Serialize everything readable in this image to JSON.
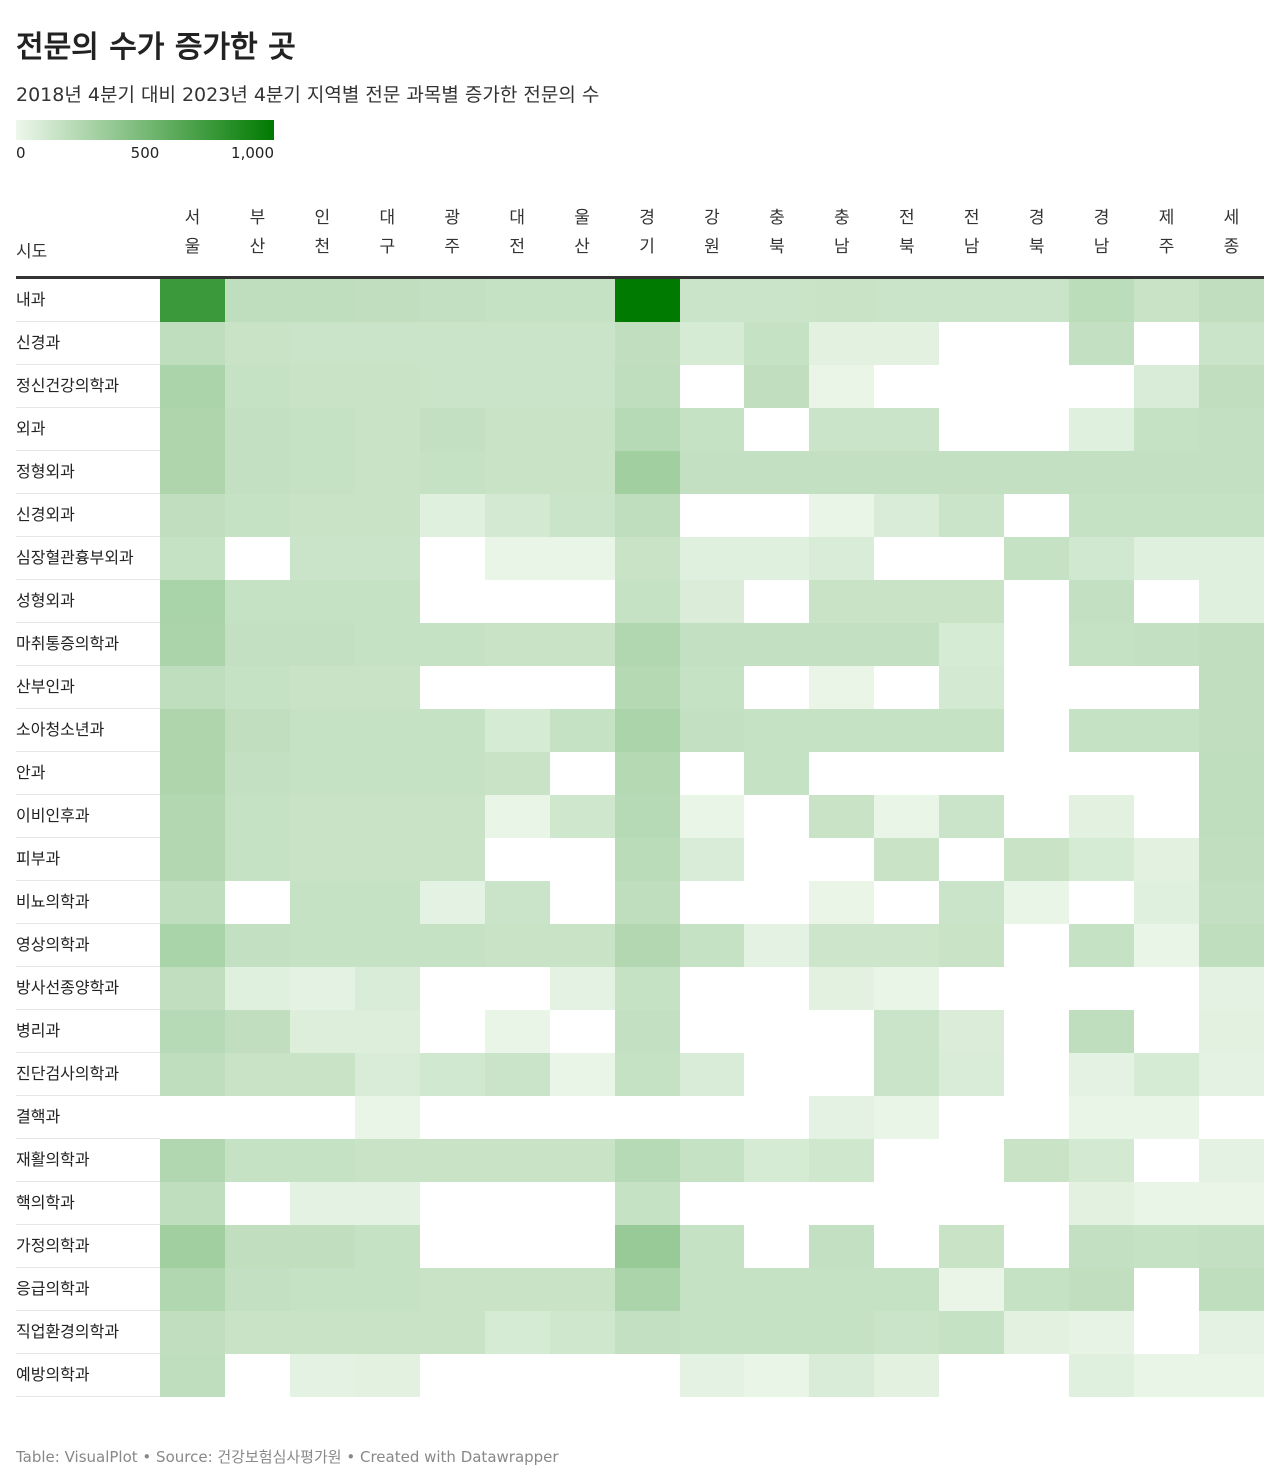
{
  "chart_data": {
    "type": "heatmap",
    "title": "전문의 수가 증가한 곳",
    "subtitle": "2018년 4분기 대비 2023년 4분기 지역별 전문 과목별 증가한 전문의 수",
    "row_header": "시도",
    "columns": [
      "서울",
      "부산",
      "인천",
      "대구",
      "광주",
      "대전",
      "울산",
      "경기",
      "강원",
      "충북",
      "충남",
      "전북",
      "전남",
      "경북",
      "경남",
      "제주",
      "세종"
    ],
    "rows": [
      "내과",
      "신경과",
      "정신건강의학과",
      "외과",
      "정형외과",
      "신경외과",
      "심장혈관흉부외과",
      "성형외과",
      "마취통증의학과",
      "산부인과",
      "소아청소년과",
      "안과",
      "이비인후과",
      "피부과",
      "비뇨의학과",
      "영상의학과",
      "방사선종양학과",
      "병리과",
      "진단검사의학과",
      "결핵과",
      "재활의학과",
      "핵의학과",
      "가정의학과",
      "응급의학과",
      "직업환경의학과",
      "예방의학과"
    ],
    "values": [
      [
        750,
        200,
        200,
        190,
        180,
        170,
        170,
        1050,
        150,
        150,
        160,
        150,
        150,
        150,
        210,
        160,
        190
      ],
      [
        200,
        160,
        150,
        150,
        150,
        150,
        150,
        190,
        100,
        170,
        50,
        50,
        null,
        null,
        180,
        null,
        150
      ],
      [
        280,
        170,
        160,
        160,
        150,
        150,
        150,
        200,
        null,
        190,
        15,
        null,
        null,
        null,
        null,
        90,
        190
      ],
      [
        270,
        180,
        170,
        160,
        180,
        160,
        160,
        230,
        170,
        null,
        150,
        150,
        null,
        null,
        60,
        170,
        180
      ],
      [
        270,
        180,
        170,
        160,
        170,
        160,
        160,
        320,
        180,
        180,
        180,
        180,
        180,
        180,
        180,
        180,
        180
      ],
      [
        190,
        170,
        160,
        160,
        60,
        110,
        150,
        200,
        null,
        null,
        20,
        90,
        150,
        null,
        170,
        170,
        170
      ],
      [
        170,
        null,
        150,
        150,
        null,
        20,
        20,
        160,
        60,
        60,
        90,
        null,
        null,
        170,
        120,
        60,
        60
      ],
      [
        290,
        170,
        170,
        170,
        null,
        null,
        null,
        170,
        80,
        null,
        160,
        160,
        160,
        null,
        180,
        null,
        60
      ],
      [
        280,
        180,
        180,
        170,
        170,
        160,
        160,
        260,
        180,
        180,
        180,
        180,
        100,
        null,
        170,
        180,
        190
      ],
      [
        200,
        170,
        160,
        160,
        null,
        null,
        null,
        240,
        170,
        null,
        15,
        null,
        110,
        null,
        null,
        null,
        190
      ],
      [
        270,
        190,
        170,
        170,
        170,
        100,
        170,
        280,
        180,
        170,
        170,
        170,
        170,
        null,
        170,
        170,
        190
      ],
      [
        270,
        180,
        170,
        170,
        170,
        160,
        null,
        240,
        null,
        170,
        null,
        null,
        null,
        null,
        null,
        null,
        200
      ],
      [
        250,
        170,
        160,
        160,
        160,
        20,
        130,
        230,
        20,
        null,
        160,
        20,
        150,
        null,
        50,
        null,
        200
      ],
      [
        250,
        170,
        160,
        160,
        160,
        null,
        null,
        220,
        90,
        null,
        null,
        160,
        null,
        160,
        100,
        50,
        190
      ],
      [
        200,
        null,
        170,
        170,
        40,
        150,
        null,
        200,
        null,
        null,
        15,
        null,
        150,
        20,
        null,
        60,
        180
      ],
      [
        290,
        180,
        170,
        170,
        170,
        160,
        160,
        250,
        170,
        40,
        140,
        140,
        160,
        null,
        170,
        20,
        200
      ],
      [
        190,
        60,
        40,
        90,
        null,
        null,
        40,
        170,
        null,
        null,
        50,
        20,
        null,
        null,
        null,
        null,
        40
      ],
      [
        230,
        190,
        70,
        70,
        null,
        20,
        null,
        180,
        null,
        null,
        null,
        150,
        80,
        null,
        200,
        null,
        50
      ],
      [
        200,
        160,
        160,
        90,
        120,
        150,
        20,
        170,
        90,
        null,
        null,
        150,
        90,
        null,
        40,
        100,
        40
      ],
      [
        null,
        null,
        null,
        20,
        null,
        null,
        null,
        null,
        null,
        null,
        40,
        20,
        null,
        null,
        20,
        20,
        null
      ],
      [
        260,
        170,
        170,
        160,
        160,
        160,
        160,
        230,
        170,
        100,
        130,
        null,
        null,
        160,
        110,
        null,
        40
      ],
      [
        200,
        null,
        40,
        40,
        null,
        null,
        null,
        170,
        null,
        null,
        null,
        null,
        null,
        null,
        50,
        20,
        15
      ],
      [
        320,
        190,
        190,
        170,
        null,
        null,
        null,
        360,
        170,
        null,
        180,
        null,
        160,
        null,
        180,
        170,
        180
      ],
      [
        260,
        180,
        170,
        170,
        160,
        160,
        160,
        280,
        170,
        170,
        170,
        170,
        15,
        170,
        190,
        null,
        200
      ],
      [
        190,
        160,
        160,
        160,
        160,
        100,
        130,
        180,
        170,
        170,
        170,
        150,
        170,
        50,
        30,
        null,
        40
      ],
      [
        200,
        null,
        40,
        50,
        null,
        null,
        null,
        null,
        40,
        20,
        90,
        50,
        null,
        null,
        60,
        20,
        20
      ]
    ],
    "color_range": [
      "#eef7ec",
      "#007a00"
    ],
    "colorbar_lim": [
      0,
      1000
    ],
    "colorbar_ticks": [
      0,
      500,
      {
        "value": 1000,
        "label": "1,000"
      }
    ],
    "source": "Table: VisualPlot • Source: 건강보험심사평가원 • Created with Datawrapper"
  }
}
